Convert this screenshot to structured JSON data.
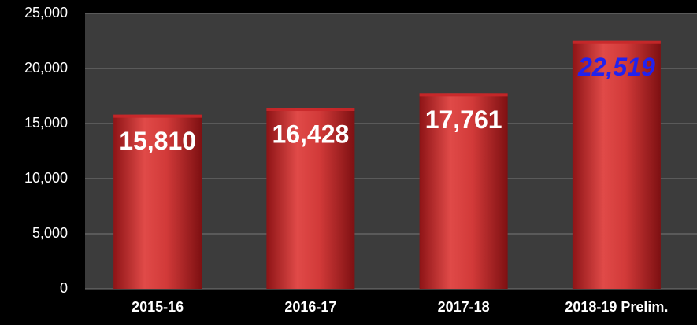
{
  "chart_data": {
    "type": "bar",
    "categories": [
      "2015-16",
      "2016-17",
      "2017-18",
      "2018-19 Prelim."
    ],
    "values": [
      15810,
      16428,
      17761,
      22519
    ],
    "value_labels": [
      "15,810",
      "16,428",
      "17,761",
      "22,519"
    ],
    "value_label_colors": [
      "#ffffff",
      "#ffffff",
      "#ffffff",
      "#2222ee"
    ],
    "value_label_styles": [
      "normal",
      "normal",
      "normal",
      "italic"
    ],
    "color": "#c8282a",
    "ylim": [
      0,
      25000
    ],
    "yticks": [
      0,
      {
        "value": 5000,
        "label": "5,000"
      },
      {
        "value": 10000,
        "label": "10,000"
      },
      {
        "value": 15000,
        "label": "15,000"
      },
      {
        "value": 20000,
        "label": "20,000"
      },
      {
        "value": 25000,
        "label": "25,000"
      }
    ],
    "grid": true
  }
}
